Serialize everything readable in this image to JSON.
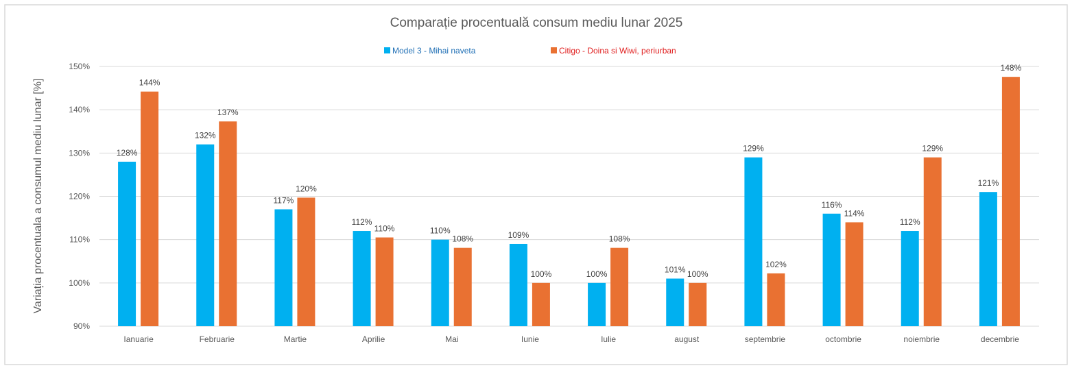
{
  "chart_data": {
    "type": "bar",
    "title": "Comparație procentuală consum mediu lunar 2025",
    "xlabel": "",
    "ylabel": "Variația procentuala a consumul mediu lunar [%]",
    "ylim": [
      90,
      150
    ],
    "yticks": [
      "90%",
      "100%",
      "110%",
      "120%",
      "130%",
      "140%",
      "150%"
    ],
    "ytick_values": [
      90,
      100,
      110,
      120,
      130,
      140,
      150
    ],
    "grid": true,
    "legend_position": "top",
    "categories": [
      "Ianuarie",
      "Februarie",
      "Martie",
      "Aprilie",
      "Mai",
      "Iunie",
      "Iulie",
      "august",
      "septembrie",
      "octombrie",
      "noiembrie",
      "decembrie"
    ],
    "series": [
      {
        "name": "Model 3 - Mihai naveta",
        "color": "#00B0F0",
        "legend_text_color": "#1F6FB5",
        "values": [
          128,
          132,
          117,
          112,
          110,
          109,
          100,
          101,
          129,
          116,
          112,
          121
        ],
        "labels": [
          "128%",
          "132%",
          "117%",
          "112%",
          "110%",
          "109%",
          "100%",
          "101%",
          "129%",
          "116%",
          "112%",
          "121%"
        ]
      },
      {
        "name": "Citigo - Doina si Wiwi, periurban",
        "color": "#E97132",
        "legend_text_color": "#E02020",
        "values": [
          144.2,
          137.3,
          119.7,
          110.5,
          108.1,
          100,
          108.1,
          100,
          102.2,
          114,
          129,
          147.6
        ],
        "labels": [
          "144%",
          "137%",
          "120%",
          "110%",
          "108%",
          "100%",
          "108%",
          "100%",
          "102%",
          "114%",
          "129%",
          "148%"
        ]
      }
    ]
  }
}
